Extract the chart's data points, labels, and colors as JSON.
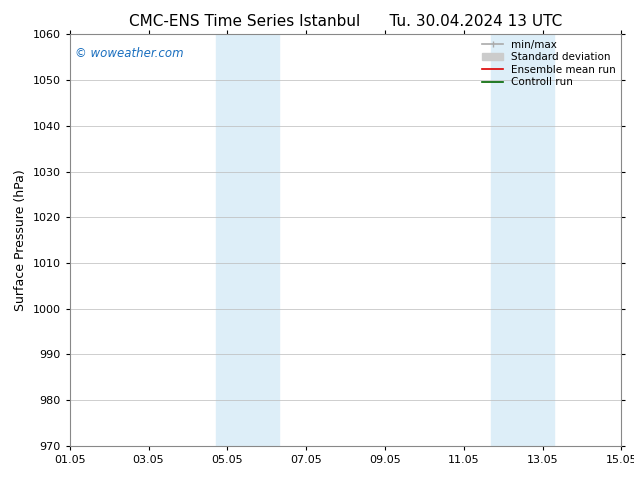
{
  "title_left": "CMC-ENS Time Series Istanbul",
  "title_right": "Tu. 30.04.2024 13 UTC",
  "ylabel": "Surface Pressure (hPa)",
  "ylim": [
    970,
    1060
  ],
  "yticks": [
    970,
    980,
    990,
    1000,
    1010,
    1020,
    1030,
    1040,
    1050,
    1060
  ],
  "xlim_start": 0,
  "xlim_end": 14,
  "xtick_labels": [
    "01.05",
    "03.05",
    "05.05",
    "07.05",
    "09.05",
    "11.05",
    "13.05",
    "15.05"
  ],
  "xtick_positions": [
    0,
    2,
    4,
    6,
    8,
    10,
    12,
    14
  ],
  "shaded_bands": [
    {
      "x_start": 3.7,
      "x_end": 5.3,
      "color": "#ddeef8"
    },
    {
      "x_start": 10.7,
      "x_end": 12.3,
      "color": "#ddeef8"
    }
  ],
  "watermark_text": "© woweather.com",
  "watermark_color": "#1a6fbf",
  "legend_items": [
    {
      "label": "min/max",
      "color": "#aaaaaa",
      "lw": 1.2
    },
    {
      "label": "Standard deviation",
      "color": "#cccccc",
      "lw": 5
    },
    {
      "label": "Ensemble mean run",
      "color": "#dd0000",
      "lw": 1.2
    },
    {
      "label": "Controll run",
      "color": "#006600",
      "lw": 1.2
    }
  ],
  "bg_color": "#ffffff",
  "grid_color": "#bbbbbb",
  "title_fontsize": 11,
  "tick_fontsize": 8,
  "legend_fontsize": 7.5,
  "ylabel_fontsize": 9,
  "watermark_fontsize": 8.5
}
